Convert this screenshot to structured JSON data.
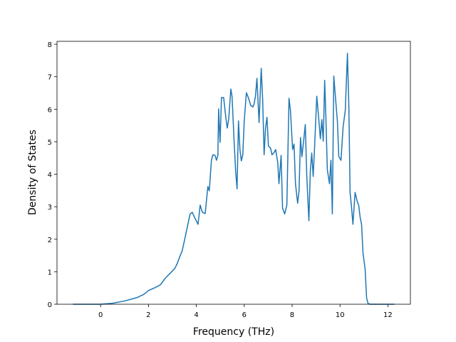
{
  "chart_data": {
    "type": "line",
    "xlabel": "Frequency (THz)",
    "ylabel": "Density of States",
    "color": "#1f77b4",
    "xlim": [
      -1.82,
      12.94
    ],
    "ylim": [
      0,
      8.09
    ],
    "xticks": [
      0,
      2,
      4,
      6,
      8,
      10,
      12
    ],
    "yticks": [
      0,
      1,
      2,
      3,
      4,
      5,
      6,
      7,
      8
    ],
    "x": [
      -1.15,
      -0.5,
      0,
      0.5,
      1.0,
      1.5,
      1.8,
      2.0,
      2.3,
      2.5,
      2.7,
      2.9,
      3.1,
      3.2,
      3.3,
      3.4,
      3.5,
      3.6,
      3.74,
      3.83,
      3.92,
      4.07,
      4.16,
      4.25,
      4.37,
      4.48,
      4.54,
      4.63,
      4.69,
      4.78,
      4.84,
      4.9,
      4.93,
      4.99,
      5.05,
      5.14,
      5.23,
      5.29,
      5.35,
      5.44,
      5.49,
      5.58,
      5.64,
      5.7,
      5.76,
      5.82,
      5.88,
      5.94,
      6.0,
      6.09,
      6.18,
      6.27,
      6.36,
      6.41,
      6.47,
      6.53,
      6.62,
      6.71,
      6.77,
      6.83,
      6.89,
      6.95,
      7.01,
      7.1,
      7.16,
      7.25,
      7.31,
      7.4,
      7.45,
      7.54,
      7.6,
      7.69,
      7.78,
      7.87,
      7.93,
      8.02,
      8.08,
      8.14,
      8.23,
      8.29,
      8.35,
      8.41,
      8.49,
      8.55,
      8.61,
      8.7,
      8.76,
      8.82,
      8.88,
      8.94,
      9.03,
      9.09,
      9.18,
      9.24,
      9.3,
      9.36,
      9.41,
      9.47,
      9.56,
      9.62,
      9.68,
      9.74,
      9.83,
      9.89,
      9.95,
      10.04,
      10.13,
      10.22,
      10.31,
      10.37,
      10.42,
      10.48,
      10.54,
      10.63,
      10.72,
      10.78,
      10.84,
      10.9,
      10.96,
      11.05,
      11.11,
      11.17,
      11.26,
      12.27
    ],
    "values": [
      0,
      0,
      0,
      0.03,
      0.1,
      0.2,
      0.3,
      0.42,
      0.52,
      0.6,
      0.8,
      0.95,
      1.1,
      1.25,
      1.45,
      1.62,
      1.95,
      2.3,
      2.78,
      2.83,
      2.68,
      2.46,
      3.05,
      2.83,
      2.79,
      3.62,
      3.49,
      4.43,
      4.6,
      4.58,
      4.43,
      4.58,
      6.01,
      4.98,
      6.36,
      6.36,
      5.75,
      5.42,
      5.68,
      6.62,
      6.4,
      4.98,
      4.1,
      3.55,
      5.64,
      4.76,
      4.41,
      4.6,
      5.64,
      6.51,
      6.34,
      6.12,
      6.07,
      6.16,
      6.4,
      6.95,
      5.59,
      7.26,
      6.29,
      4.6,
      5.42,
      5.75,
      4.87,
      4.8,
      4.6,
      4.67,
      4.76,
      4.36,
      3.71,
      4.58,
      2.96,
      2.78,
      3.05,
      6.34,
      5.96,
      4.76,
      4.93,
      3.71,
      3.11,
      3.49,
      5.13,
      4.54,
      5.09,
      5.53,
      3.99,
      2.57,
      4.1,
      4.65,
      3.93,
      4.87,
      6.4,
      5.9,
      5.09,
      5.68,
      5.02,
      6.89,
      5.75,
      4.14,
      3.71,
      4.43,
      2.78,
      7.02,
      6.18,
      5.64,
      4.54,
      4.43,
      5.46,
      5.96,
      7.72,
      6.07,
      3.44,
      3.0,
      2.46,
      3.44,
      3.16,
      3.05,
      2.68,
      2.46,
      1.58,
      1.07,
      0.2,
      0.02,
      0,
      0
    ]
  }
}
